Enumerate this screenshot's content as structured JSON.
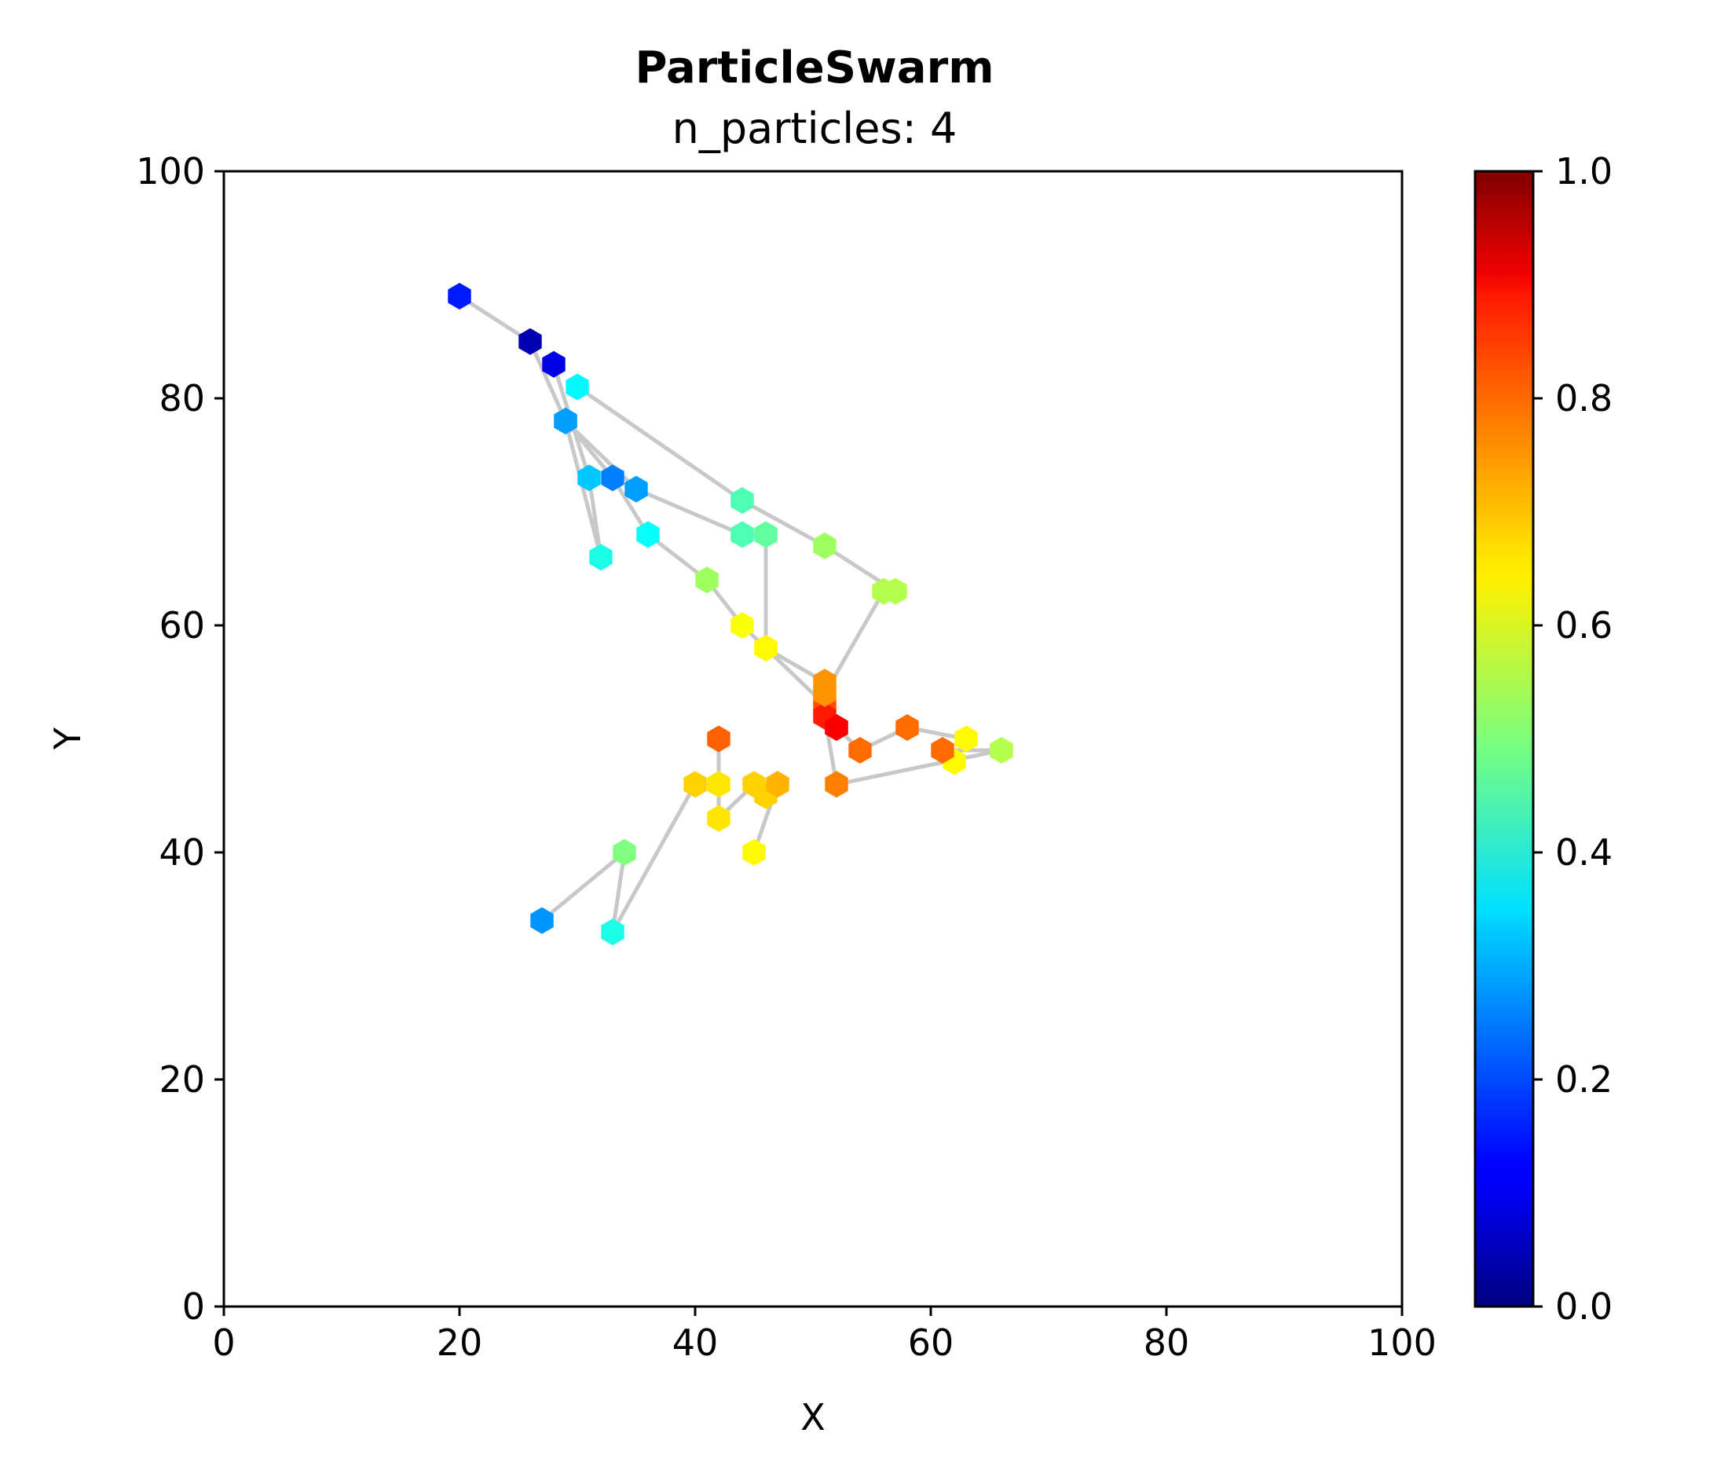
{
  "chart_data": {
    "type": "scatter",
    "title": "ParticleSwarm",
    "subtitle": "n_particles: 4",
    "xlabel": "X",
    "ylabel": "Y",
    "xlim": [
      0,
      100
    ],
    "ylim": [
      0,
      100
    ],
    "xticks": [
      "0",
      "20",
      "40",
      "60",
      "80",
      "100"
    ],
    "yticks": [
      "0",
      "20",
      "40",
      "60",
      "80",
      "100"
    ],
    "grid": false,
    "marker": "hexagon",
    "colormap": "jet",
    "colorbar": {
      "range": [
        0,
        1
      ],
      "ticks": [
        "0.0",
        "0.2",
        "0.4",
        "0.6",
        "0.8",
        "1.0"
      ]
    },
    "line_color": "#c8c8c8",
    "trajectories": [
      [
        {
          "x": 20,
          "y": 89,
          "c": 0.15
        },
        {
          "x": 26,
          "y": 85,
          "c": 0.05
        },
        {
          "x": 29,
          "y": 78,
          "c": 0.28
        },
        {
          "x": 33,
          "y": 73,
          "c": 0.25
        },
        {
          "x": 36,
          "y": 68,
          "c": 0.38
        },
        {
          "x": 41,
          "y": 64,
          "c": 0.53
        },
        {
          "x": 44,
          "y": 60,
          "c": 0.62
        },
        {
          "x": 46,
          "y": 58,
          "c": 0.63
        },
        {
          "x": 51,
          "y": 53,
          "c": 0.8
        },
        {
          "x": 52,
          "y": 51,
          "c": 0.88
        },
        {
          "x": 54,
          "y": 49,
          "c": 0.77
        },
        {
          "x": 58,
          "y": 51,
          "c": 0.77
        },
        {
          "x": 63,
          "y": 50,
          "c": 0.63
        },
        {
          "x": 62,
          "y": 48,
          "c": 0.63
        }
      ],
      [
        {
          "x": 28,
          "y": 83,
          "c": 0.1
        },
        {
          "x": 31,
          "y": 73,
          "c": 0.32
        },
        {
          "x": 32,
          "y": 66,
          "c": 0.4
        },
        {
          "x": 29,
          "y": 78,
          "c": 0.28
        },
        {
          "x": 35,
          "y": 72,
          "c": 0.28
        },
        {
          "x": 44,
          "y": 68,
          "c": 0.45
        },
        {
          "x": 46,
          "y": 68,
          "c": 0.47
        },
        {
          "x": 46,
          "y": 58,
          "c": 0.63
        },
        {
          "x": 51,
          "y": 55,
          "c": 0.73
        },
        {
          "x": 51,
          "y": 52,
          "c": 0.85
        },
        {
          "x": 52,
          "y": 46,
          "c": 0.75
        },
        {
          "x": 66,
          "y": 49,
          "c": 0.55
        },
        {
          "x": 61,
          "y": 49,
          "c": 0.77
        }
      ],
      [
        {
          "x": 30,
          "y": 81,
          "c": 0.37
        },
        {
          "x": 44,
          "y": 71,
          "c": 0.45
        },
        {
          "x": 51,
          "y": 67,
          "c": 0.53
        },
        {
          "x": 57,
          "y": 63,
          "c": 0.55
        },
        {
          "x": 56,
          "y": 63,
          "c": 0.55
        },
        {
          "x": 51,
          "y": 54,
          "c": 0.73
        },
        {
          "x": 52,
          "y": 51,
          "c": 0.88
        }
      ],
      [
        {
          "x": 27,
          "y": 34,
          "c": 0.27
        },
        {
          "x": 34,
          "y": 40,
          "c": 0.5
        },
        {
          "x": 33,
          "y": 33,
          "c": 0.4
        },
        {
          "x": 40,
          "y": 46,
          "c": 0.67
        },
        {
          "x": 42,
          "y": 46,
          "c": 0.65
        },
        {
          "x": 42,
          "y": 50,
          "c": 0.78
        },
        {
          "x": 42,
          "y": 43,
          "c": 0.65
        },
        {
          "x": 45,
          "y": 46,
          "c": 0.67
        },
        {
          "x": 46,
          "y": 45,
          "c": 0.67
        },
        {
          "x": 47,
          "y": 46,
          "c": 0.7
        },
        {
          "x": 45,
          "y": 40,
          "c": 0.63
        }
      ]
    ]
  }
}
